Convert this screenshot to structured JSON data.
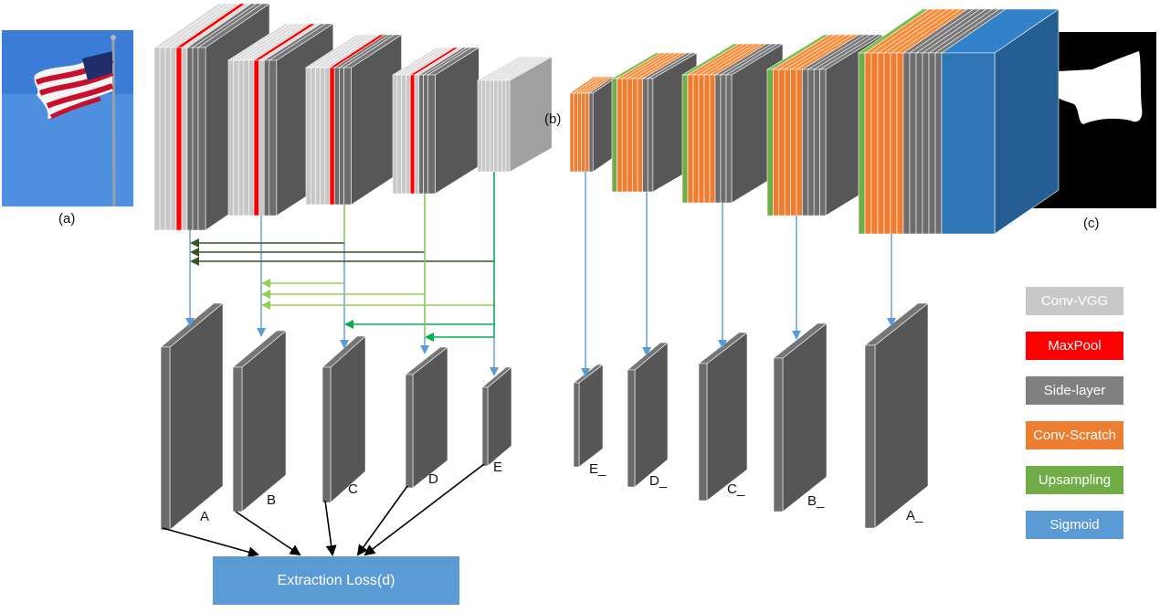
{
  "labels": {
    "panel_a": "(a)",
    "panel_b": "(b)",
    "panel_c": "(c)",
    "loss": "Extraction Loss(d)"
  },
  "side_outputs": {
    "encoder": [
      "A",
      "B",
      "C",
      "D",
      "E"
    ],
    "decoder": [
      "E_",
      "D_",
      "C_",
      "B_",
      "A_"
    ]
  },
  "legend": [
    {
      "label": "Conv-VGG",
      "color": "#c8c8c8",
      "text_color": "#ffffff"
    },
    {
      "label": "MaxPool",
      "color": "#ff0000",
      "text_color": "#ffffff"
    },
    {
      "label": "Side-layer",
      "color": "#808080",
      "text_color": "#ffffff"
    },
    {
      "label": "Conv-Scratch",
      "color": "#ed7d31",
      "text_color": "#ffffff"
    },
    {
      "label": "Upsampling",
      "color": "#70ad47",
      "text_color": "#ffffff"
    },
    {
      "label": "Sigmoid",
      "color": "#5b9bd5",
      "text_color": "#ffffff"
    }
  ],
  "colors": {
    "conv_vgg": "#c8c8c8",
    "maxpool": "#ff0000",
    "side_layer": "#6d6d6d",
    "conv_scratch": "#ed7d31",
    "upsampling": "#70ad47",
    "sigmoid": "#2e75b6",
    "arrow_blue": "#5b9bd5",
    "arrow_dark_green": "#375623",
    "arrow_light_green": "#92d050",
    "arrow_green": "#00b050",
    "arrow_black": "#000000"
  }
}
